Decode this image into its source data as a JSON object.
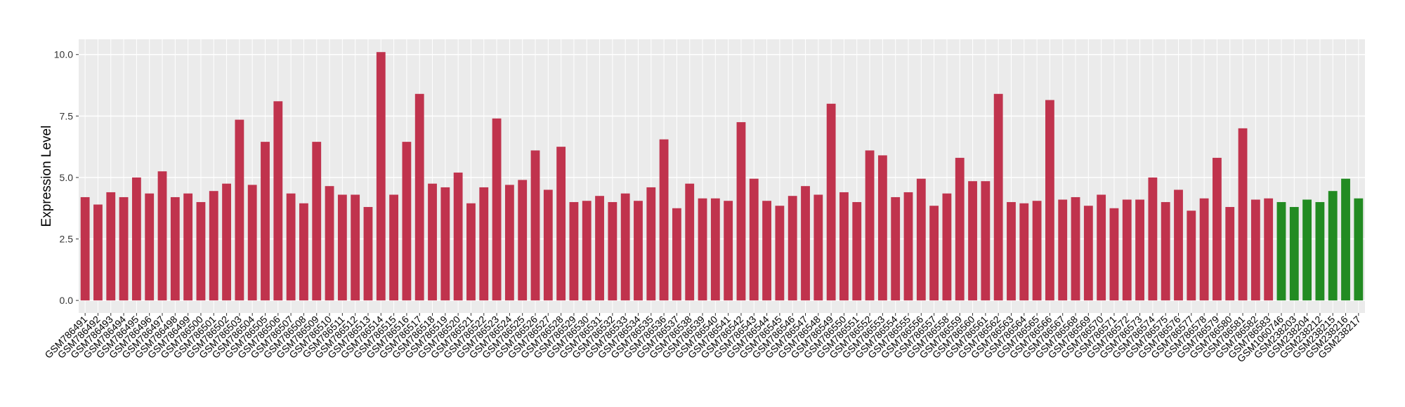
{
  "chart_data": {
    "type": "bar",
    "y_label": "Expression Level",
    "categories": [
      "GSM786491",
      "GSM786492",
      "GSM786493",
      "GSM786494",
      "GSM786495",
      "GSM786496",
      "GSM786497",
      "GSM786498",
      "GSM786499",
      "GSM786500",
      "GSM786501",
      "GSM786502",
      "GSM786503",
      "GSM786504",
      "GSM786505",
      "GSM786506",
      "GSM786507",
      "GSM786508",
      "GSM786509",
      "GSM786510",
      "GSM786511",
      "GSM786512",
      "GSM786513",
      "GSM786514",
      "GSM786515",
      "GSM786516",
      "GSM786517",
      "GSM786518",
      "GSM786519",
      "GSM786520",
      "GSM786521",
      "GSM786522",
      "GSM786523",
      "GSM786524",
      "GSM786525",
      "GSM786526",
      "GSM786527",
      "GSM786528",
      "GSM786529",
      "GSM786530",
      "GSM786531",
      "GSM786532",
      "GSM786533",
      "GSM786534",
      "GSM786535",
      "GSM786536",
      "GSM786537",
      "GSM786538",
      "GSM786539",
      "GSM786540",
      "GSM786541",
      "GSM786542",
      "GSM786543",
      "GSM786544",
      "GSM786545",
      "GSM786546",
      "GSM786547",
      "GSM786548",
      "GSM786549",
      "GSM786550",
      "GSM786551",
      "GSM786552",
      "GSM786553",
      "GSM786554",
      "GSM786555",
      "GSM786556",
      "GSM786557",
      "GSM786558",
      "GSM786559",
      "GSM786560",
      "GSM786561",
      "GSM786562",
      "GSM786563",
      "GSM786564",
      "GSM786565",
      "GSM786566",
      "GSM786567",
      "GSM786568",
      "GSM786569",
      "GSM786570",
      "GSM786571",
      "GSM786572",
      "GSM786573",
      "GSM786574",
      "GSM786575",
      "GSM786576",
      "GSM786577",
      "GSM786578",
      "GSM786579",
      "GSM786580",
      "GSM786581",
      "GSM786582",
      "GSM786583",
      "GSM1060746",
      "GSM238203",
      "GSM238204",
      "GSM238212",
      "GSM238215",
      "GSM238216",
      "GSM238217"
    ],
    "values": [
      4.2,
      3.9,
      4.4,
      4.2,
      5.0,
      4.35,
      5.25,
      4.2,
      4.35,
      4.0,
      4.45,
      4.75,
      7.35,
      4.7,
      6.45,
      8.1,
      4.35,
      3.95,
      6.45,
      4.65,
      4.3,
      4.3,
      3.8,
      10.1,
      4.3,
      6.45,
      8.4,
      4.75,
      4.6,
      5.2,
      3.95,
      4.6,
      7.4,
      4.7,
      4.9,
      6.1,
      4.5,
      6.25,
      4.0,
      4.05,
      4.25,
      4.0,
      4.35,
      4.05,
      4.6,
      6.55,
      3.75,
      4.75,
      4.15,
      4.15,
      4.05,
      7.25,
      4.95,
      4.05,
      3.85,
      4.25,
      4.65,
      4.3,
      8.0,
      4.4,
      4.0,
      6.1,
      5.9,
      4.2,
      4.4,
      4.95,
      3.85,
      4.35,
      5.8,
      4.85,
      4.85,
      8.4,
      4.0,
      3.95,
      4.05,
      8.15,
      4.1,
      4.2,
      3.85,
      4.3,
      3.75,
      4.1,
      4.1,
      5.0,
      4.0,
      4.5,
      3.65,
      4.15,
      5.8,
      3.8,
      7.0,
      4.1,
      4.15,
      4.0,
      3.8,
      4.1,
      4.0,
      4.45,
      4.95,
      4.15
    ],
    "colors": [
      "#c0334d",
      "#c0334d",
      "#c0334d",
      "#c0334d",
      "#c0334d",
      "#c0334d",
      "#c0334d",
      "#c0334d",
      "#c0334d",
      "#c0334d",
      "#c0334d",
      "#c0334d",
      "#c0334d",
      "#c0334d",
      "#c0334d",
      "#c0334d",
      "#c0334d",
      "#c0334d",
      "#c0334d",
      "#c0334d",
      "#c0334d",
      "#c0334d",
      "#c0334d",
      "#c0334d",
      "#c0334d",
      "#c0334d",
      "#c0334d",
      "#c0334d",
      "#c0334d",
      "#c0334d",
      "#c0334d",
      "#c0334d",
      "#c0334d",
      "#c0334d",
      "#c0334d",
      "#c0334d",
      "#c0334d",
      "#c0334d",
      "#c0334d",
      "#c0334d",
      "#c0334d",
      "#c0334d",
      "#c0334d",
      "#c0334d",
      "#c0334d",
      "#c0334d",
      "#c0334d",
      "#c0334d",
      "#c0334d",
      "#c0334d",
      "#c0334d",
      "#c0334d",
      "#c0334d",
      "#c0334d",
      "#c0334d",
      "#c0334d",
      "#c0334d",
      "#c0334d",
      "#c0334d",
      "#c0334d",
      "#c0334d",
      "#c0334d",
      "#c0334d",
      "#c0334d",
      "#c0334d",
      "#c0334d",
      "#c0334d",
      "#c0334d",
      "#c0334d",
      "#c0334d",
      "#c0334d",
      "#c0334d",
      "#c0334d",
      "#c0334d",
      "#c0334d",
      "#c0334d",
      "#c0334d",
      "#c0334d",
      "#c0334d",
      "#c0334d",
      "#c0334d",
      "#c0334d",
      "#c0334d",
      "#c0334d",
      "#c0334d",
      "#c0334d",
      "#c0334d",
      "#c0334d",
      "#c0334d",
      "#c0334d",
      "#c0334d",
      "#c0334d",
      "#c0334d",
      "#228b22",
      "#228b22",
      "#228b22",
      "#228b22",
      "#228b22",
      "#228b22",
      "#228b22"
    ],
    "ylim": [
      -0.51,
      10.62
    ],
    "yticks": [
      {
        "value": 0,
        "label": "0.0"
      },
      {
        "value": 2.5,
        "label": "2.5"
      },
      {
        "value": 5,
        "label": "5.0"
      },
      {
        "value": 7.5,
        "label": "7.5"
      },
      {
        "value": 10,
        "label": "10.0"
      }
    ],
    "grid": true
  }
}
